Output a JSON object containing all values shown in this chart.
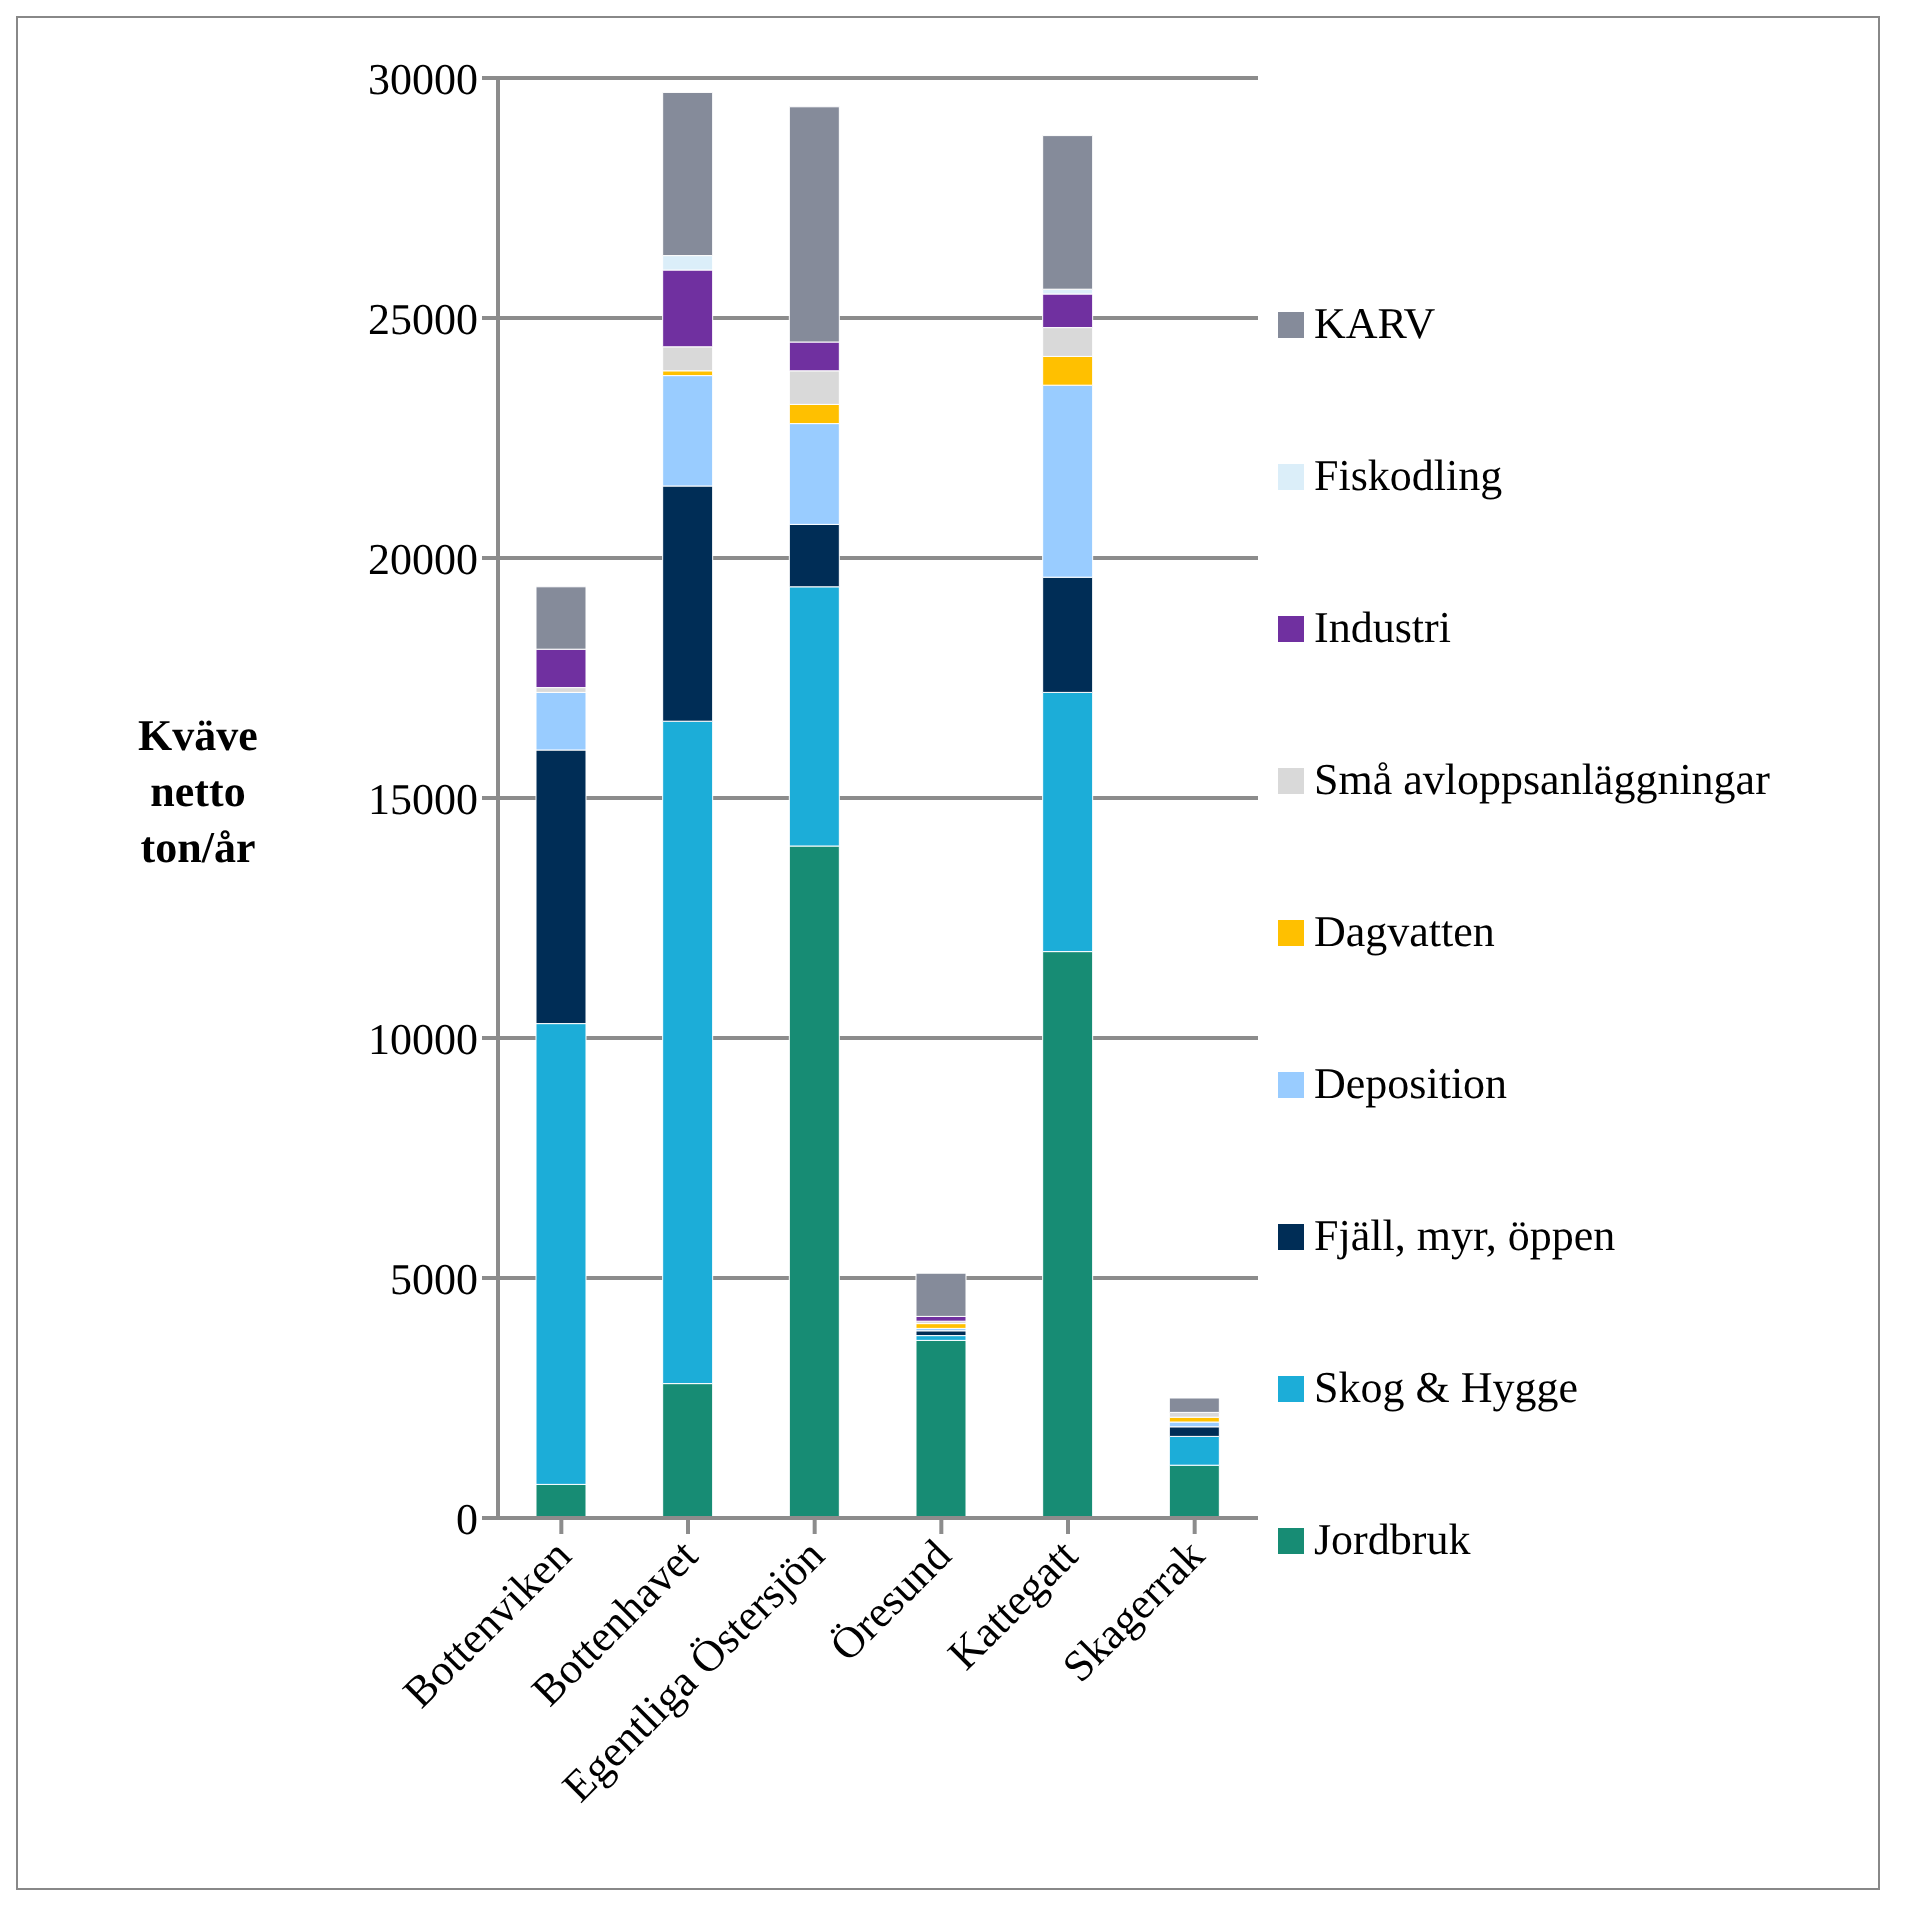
{
  "chart_data": {
    "type": "bar",
    "stacked": true,
    "ylabel": "Kväve netto ton/år",
    "categories": [
      "Bottenviken",
      "Bottenhavet",
      "Egentliga Östersjön",
      "Öresund",
      "Kattegatt",
      "Skagerrak"
    ],
    "series": [
      {
        "name": "Jordbruk",
        "color": "#178c74",
        "values": [
          700,
          2800,
          14000,
          3700,
          11800,
          1100
        ]
      },
      {
        "name": "Skog & Hygge",
        "color": "#1cadd8",
        "values": [
          9600,
          13800,
          5400,
          100,
          5400,
          600
        ]
      },
      {
        "name": "Fjäll, myr, öppen",
        "color": "#002d56",
        "values": [
          5700,
          4900,
          1300,
          100,
          2400,
          200
        ]
      },
      {
        "name": "Deposition",
        "color": "#99ccff",
        "values": [
          1200,
          2300,
          2100,
          50,
          4000,
          100
        ]
      },
      {
        "name": "Dagvatten",
        "color": "#ffc000",
        "values": [
          0,
          100,
          400,
          100,
          600,
          100
        ]
      },
      {
        "name": "Små avloppsanläggningar",
        "color": "#d9d9d9",
        "values": [
          100,
          500,
          700,
          50,
          600,
          100
        ]
      },
      {
        "name": "Industri",
        "color": "#7030a0",
        "values": [
          800,
          1600,
          600,
          100,
          700,
          0
        ]
      },
      {
        "name": "Fiskodling",
        "color": "#dbeef9",
        "values": [
          0,
          300,
          0,
          0,
          100,
          0
        ]
      },
      {
        "name": "KARV",
        "color": "#858b9a",
        "values": [
          1300,
          3400,
          4900,
          900,
          3200,
          300
        ]
      }
    ],
    "ylim": [
      0,
      30000
    ],
    "yticks": [
      0,
      5000,
      10000,
      15000,
      20000,
      25000,
      30000
    ],
    "grid": "y",
    "legend": "right"
  }
}
